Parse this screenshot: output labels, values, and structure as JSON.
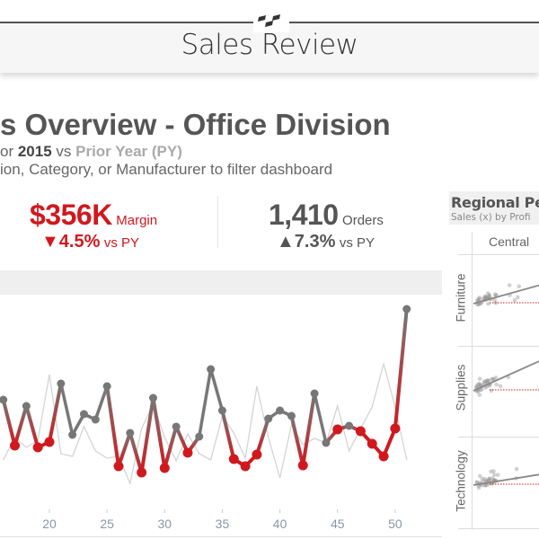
{
  "banner": {
    "title": "Sales Review",
    "logo": "checker-logo-icon"
  },
  "header": {
    "title": "s Overview - Office Division",
    "subtitle_prefix": "or ",
    "subtitle_year": "2015",
    "subtitle_mid": " vs ",
    "subtitle_py": "Prior Year (PY)",
    "instructions": "ion, Category, or Manufacturer to filter dashboard"
  },
  "kpis": [
    {
      "value": "$356K",
      "label": "Margin",
      "arrow": "▼",
      "change": "4.5%",
      "vs": "vs PY",
      "color": "#d0191e"
    },
    {
      "value": "1,410",
      "label": "Orders",
      "arrow": "▲",
      "change": "7.3%",
      "vs": "vs PY",
      "color": "#555555"
    }
  ],
  "chart_data": {
    "type": "line",
    "x": [
      16,
      17,
      18,
      19,
      20,
      21,
      22,
      23,
      24,
      25,
      26,
      27,
      28,
      29,
      30,
      31,
      32,
      33,
      34,
      35,
      36,
      37,
      38,
      39,
      40,
      41,
      42,
      43,
      44,
      45,
      46,
      47,
      48,
      49,
      50,
      51
    ],
    "x_ticks": [
      "20",
      "25",
      "30",
      "35",
      "40",
      "45",
      "50"
    ],
    "series": [
      {
        "role": "current-year",
        "color_above": "#777777",
        "color_below": "#d0191e",
        "values": [
          155,
          104,
          148,
          102,
          108,
          173,
          116,
          139,
          133,
          170,
          81,
          118,
          74,
          157,
          79,
          125,
          96,
          114,
          189,
          143,
          89,
          81,
          94,
          134,
          143,
          137,
          82,
          162,
          107,
          122,
          126,
          120,
          106,
          92,
          123,
          256
        ]
      },
      {
        "role": "prior-year",
        "color": "#d4d4d4",
        "values": [
          88,
          113,
          102,
          110,
          183,
          95,
          92,
          125,
          98,
          90,
          92,
          62,
          123,
          150,
          113,
          87,
          117,
          95,
          88,
          137,
          118,
          90,
          170,
          113,
          68,
          127,
          105,
          112,
          107,
          148,
          98,
          123,
          147,
          195,
          147,
          88
        ]
      }
    ],
    "ylim": [
      0,
      300
    ],
    "grid": false
  },
  "regional": {
    "title": "Regional Pe",
    "subtitle": "Sales (x) by Profi",
    "column": "Central",
    "rows": [
      "Furniture",
      "Supplies",
      "Technology"
    ],
    "trend_color": "#888888",
    "reference_color": "#d0191e"
  }
}
